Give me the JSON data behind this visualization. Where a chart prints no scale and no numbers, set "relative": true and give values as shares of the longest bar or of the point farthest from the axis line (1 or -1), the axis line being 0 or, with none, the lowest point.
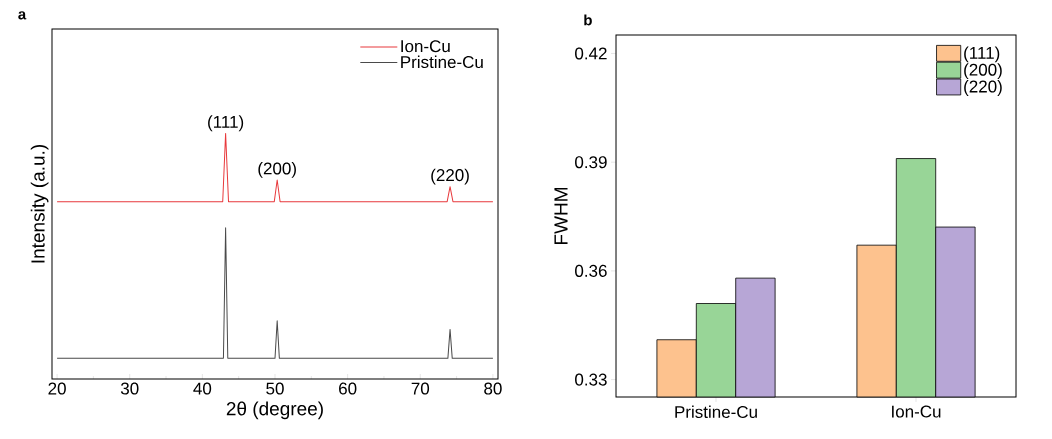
{
  "chart_data": [
    {
      "type": "line",
      "title": "a",
      "xlabel": "2θ (degree)",
      "ylabel": "Intensity (a.u.)",
      "relative": true,
      "tick_labels": "x",
      "legend": "top right",
      "xlim": [
        19.3,
        80.7
      ],
      "xticks": [
        20,
        30,
        40,
        50,
        60,
        70,
        80
      ],
      "series": [
        {
          "name": "Ion-Cu",
          "color": "#e8393c",
          "x": [
            20,
            42.8,
            43.2,
            43.6,
            49.9,
            50.3,
            50.7,
            73.7,
            74.1,
            74.5,
            80
          ],
          "values": [
            0.722,
            0.722,
            1.0,
            0.722,
            0.722,
            0.81,
            0.722,
            0.722,
            0.783,
            0.722,
            0.722
          ]
        },
        {
          "name": "Pristine-Cu",
          "color": "#4a4a4a",
          "x": [
            20,
            42.9,
            43.2,
            43.5,
            50.0,
            50.3,
            50.6,
            73.8,
            74.1,
            74.4,
            80
          ],
          "values": [
            0.084,
            0.084,
            0.616,
            0.084,
            0.084,
            0.237,
            0.084,
            0.084,
            0.202,
            0.084,
            0.084
          ]
        }
      ],
      "annotations": [
        {
          "text": "(111)",
          "x": 43.2,
          "y": 1.0
        },
        {
          "text": "(200)",
          "x": 50.3,
          "y": 0.81
        },
        {
          "text": "(220)",
          "x": 74.1,
          "y": 0.783
        }
      ]
    },
    {
      "type": "bar",
      "title": "b",
      "ylabel": "FWHM",
      "legend": "top right",
      "categories": [
        "Pristine-Cu",
        "Ion-Cu"
      ],
      "ylim": [
        0.3252,
        0.4251
      ],
      "yticks": [
        0.33,
        0.36,
        0.39,
        0.42
      ],
      "series": [
        {
          "name": "(111)",
          "color": "#fdc28e",
          "values": [
            0.341,
            0.3671
          ]
        },
        {
          "name": "(200)",
          "color": "#98d597",
          "values": [
            0.351,
            0.391
          ]
        },
        {
          "name": "(220)",
          "color": "#b7a6d6",
          "values": [
            0.358,
            0.3721
          ]
        }
      ]
    }
  ]
}
